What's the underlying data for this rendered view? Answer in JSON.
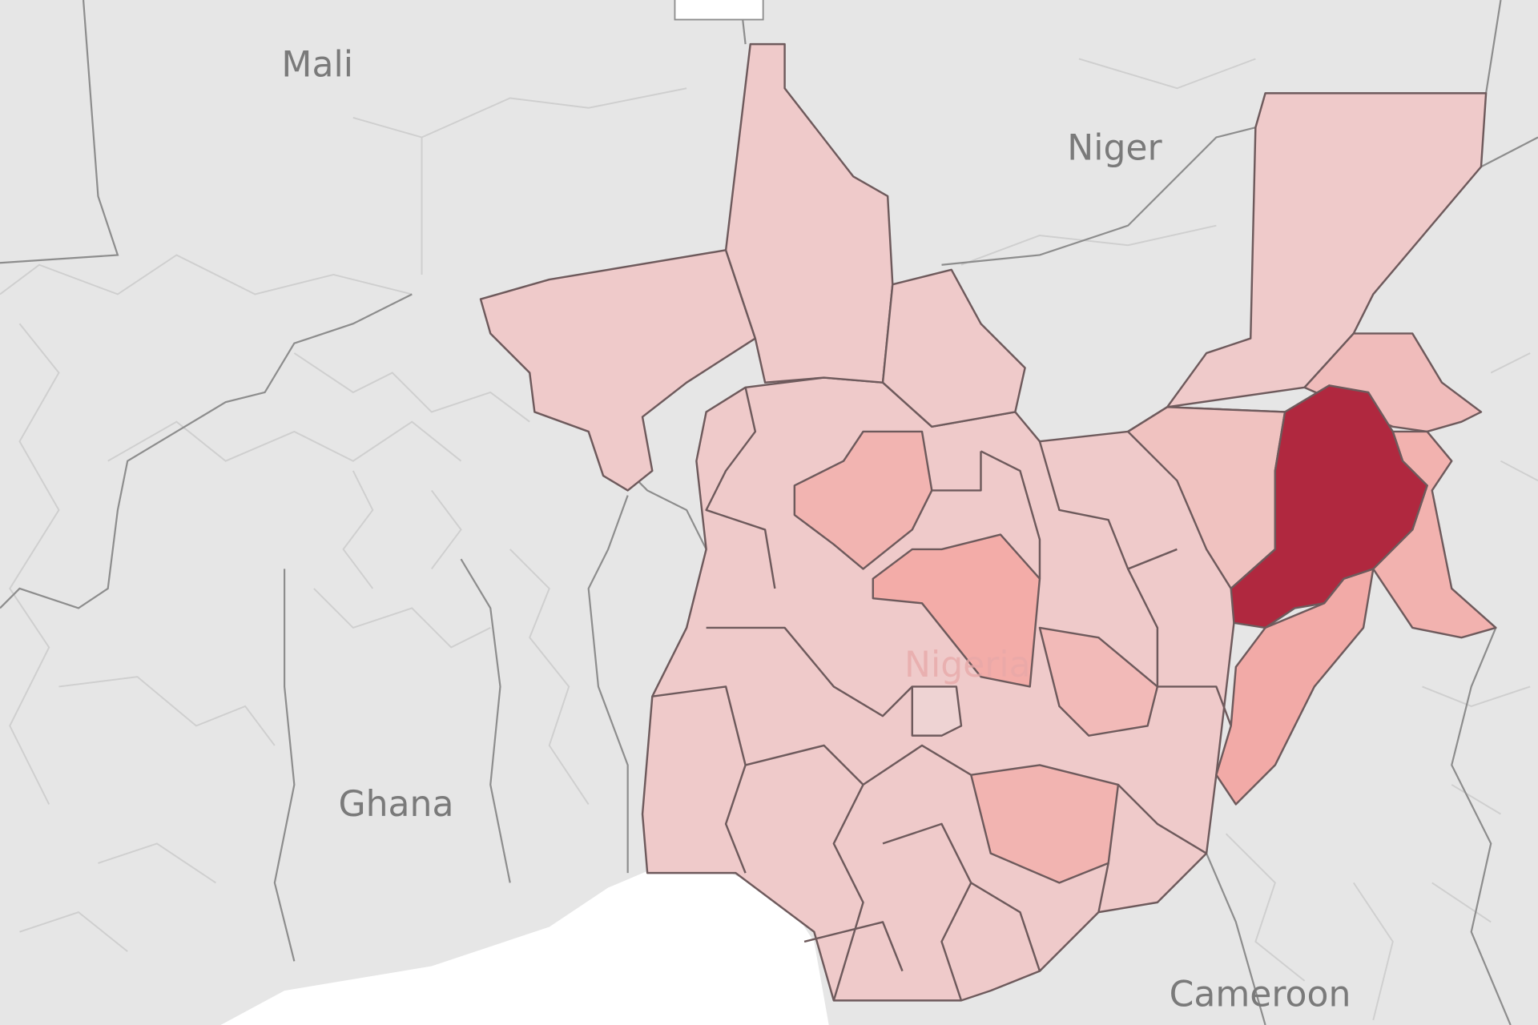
{
  "map": {
    "labels": {
      "mali": "Mali",
      "niger": "Niger",
      "nigeria": "Nigeria",
      "ghana": "Ghana",
      "cameroon": "Cameroon"
    },
    "colors": {
      "land": "#e6e6e6",
      "ocean": "#ffffff",
      "low": "#efcaca",
      "medium": "#f2aeab",
      "high": "#b0283f",
      "state_border": "#6e5a5c"
    },
    "legend_scale": "sequential-red",
    "highlighted_region_level": "high"
  }
}
